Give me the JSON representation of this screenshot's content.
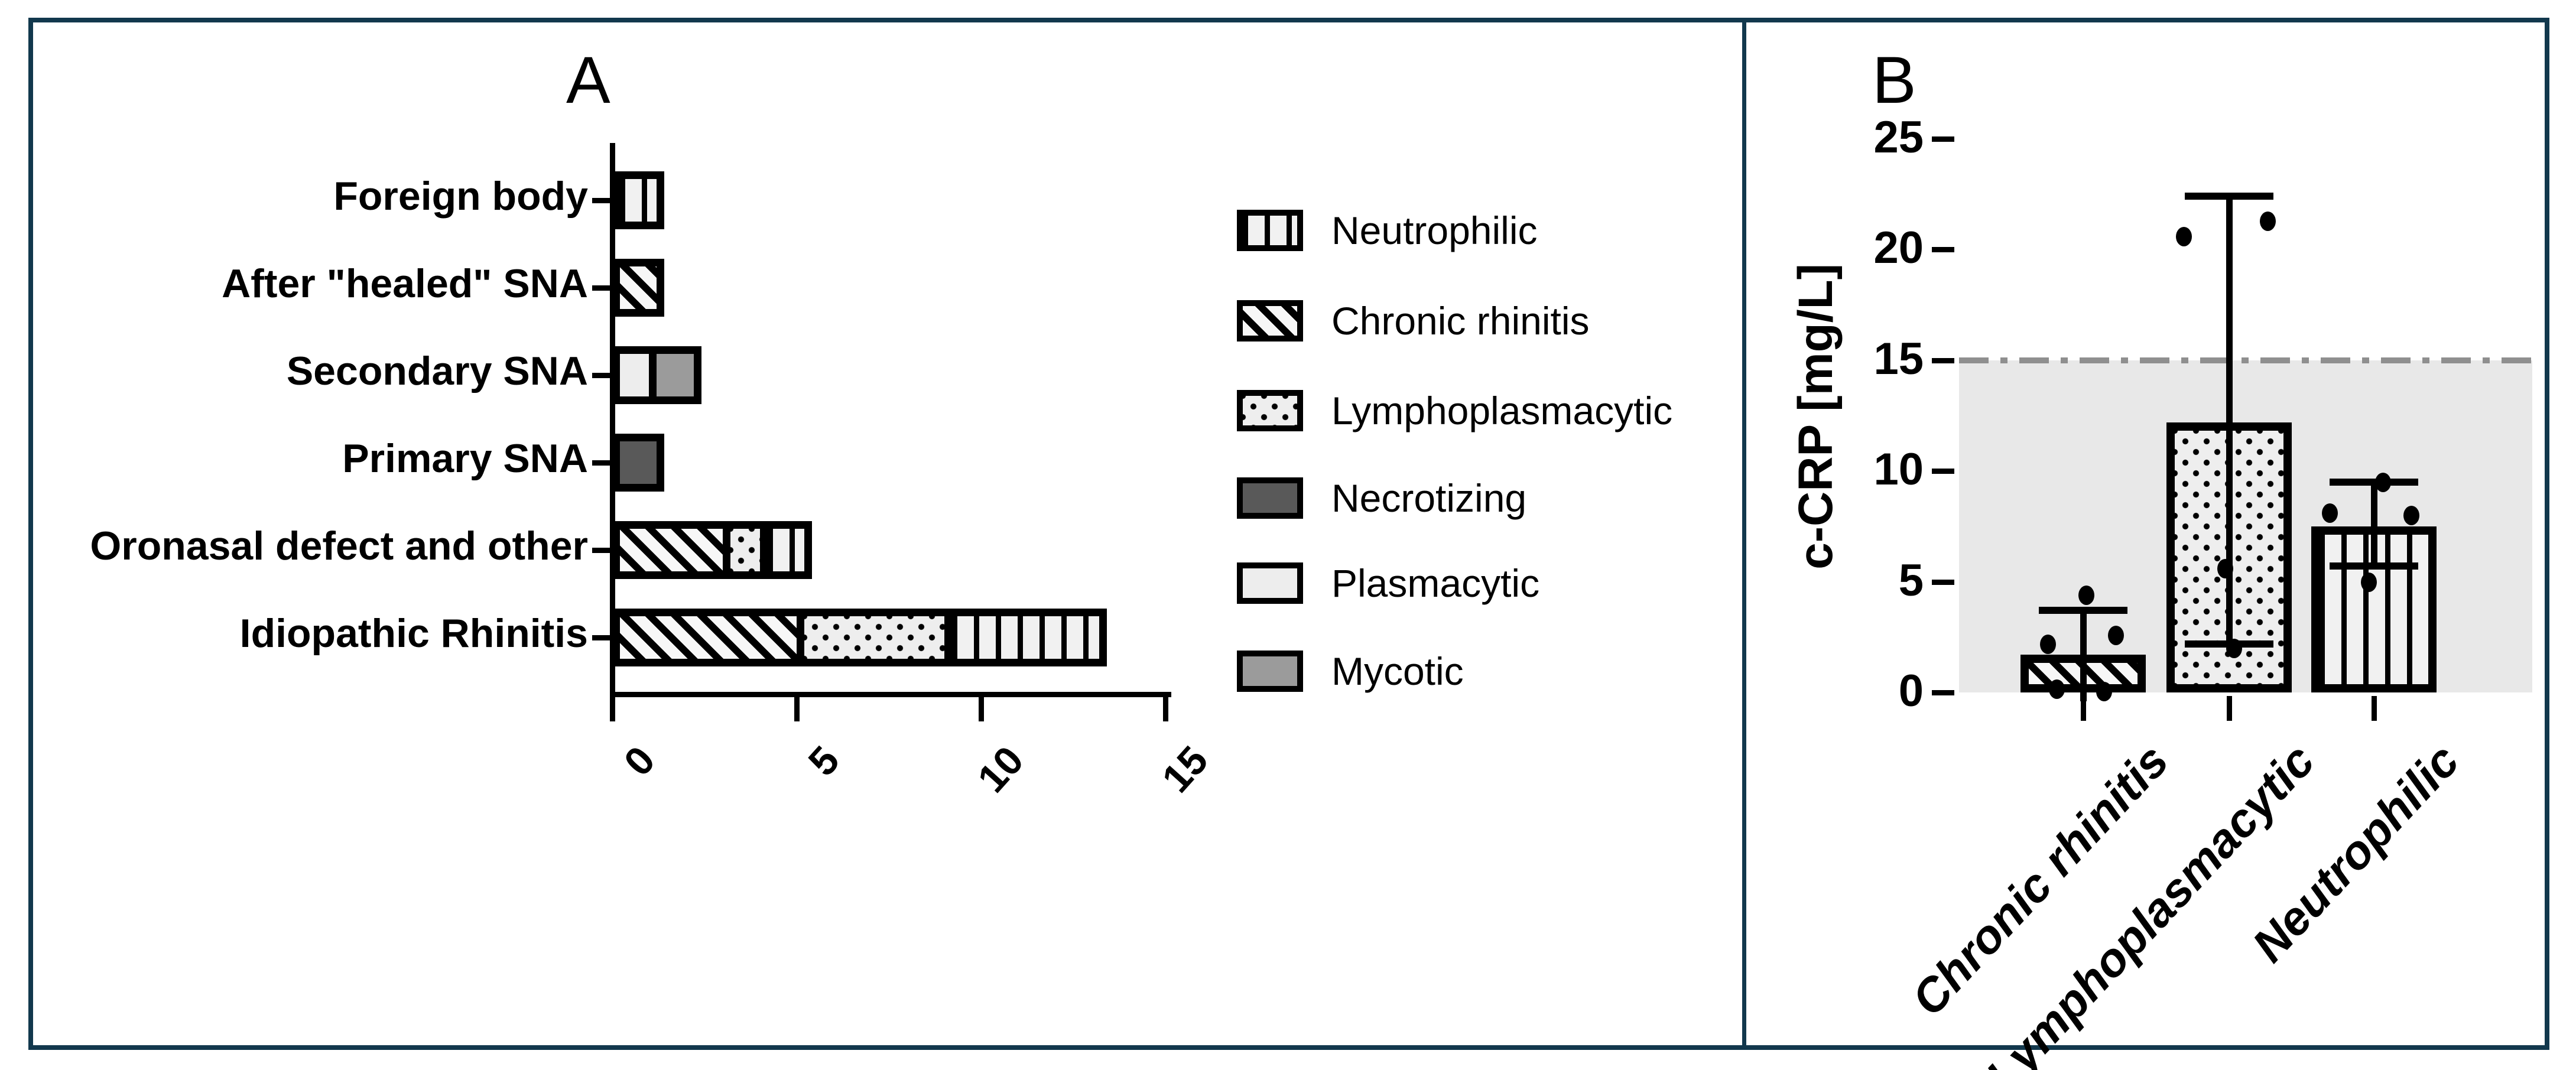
{
  "figure": {
    "panel_a_label": "A",
    "panel_b_label": "B",
    "border_color": "#12384d"
  },
  "chart_data": [
    {
      "type": "bar",
      "panel": "A",
      "orientation": "horizontal",
      "stacked": true,
      "title": "",
      "xlabel": "",
      "ylabel": "",
      "xlim": [
        0,
        15
      ],
      "xticks": [
        0,
        5,
        10,
        15
      ],
      "grid": false,
      "legend_position": "right",
      "categories": [
        "Foreign body",
        "After \"healed\" SNA",
        "Secondary SNA",
        "Primary SNA",
        "Oronasal defect and other",
        "Idiopathic Rhinitis"
      ],
      "bars": [
        {
          "category": "Foreign body",
          "total": 1,
          "segments": [
            {
              "series": "Neutrophilic",
              "value": 1
            }
          ]
        },
        {
          "category": "After \"healed\" SNA",
          "total": 1,
          "segments": [
            {
              "series": "Chronic rhinitis",
              "value": 1
            }
          ]
        },
        {
          "category": "Secondary SNA",
          "total": 2,
          "segments": [
            {
              "series": "Plasmacytic",
              "value": 1
            },
            {
              "series": "Mycotic",
              "value": 1
            }
          ]
        },
        {
          "category": "Primary SNA",
          "total": 1,
          "segments": [
            {
              "series": "Necrotizing",
              "value": 1
            }
          ]
        },
        {
          "category": "Oronasal defect and other",
          "total": 5,
          "segments": [
            {
              "series": "Chronic rhinitis",
              "value": 3
            },
            {
              "series": "Lymphoplasmacytic",
              "value": 1
            },
            {
              "series": "Neutrophilic",
              "value": 1
            }
          ]
        },
        {
          "category": "Idiopathic Rhinitis",
          "total": 13,
          "segments": [
            {
              "series": "Chronic rhinitis",
              "value": 5
            },
            {
              "series": "Lymphoplasmacytic",
              "value": 4
            },
            {
              "series": "Neutrophilic",
              "value": 4
            }
          ]
        }
      ],
      "legend": [
        {
          "label": "Neutrophilic",
          "pattern": "vertical-stripes"
        },
        {
          "label": "Chronic rhinitis",
          "pattern": "diagonal-stripes"
        },
        {
          "label": "Lymphoplasmacytic",
          "pattern": "dots"
        },
        {
          "label": "Necrotizing",
          "pattern": "solid-dark-gray",
          "color": "#595959"
        },
        {
          "label": "Plasmacytic",
          "pattern": "solid-light-gray",
          "color": "#ededed"
        },
        {
          "label": "Mycotic",
          "pattern": "solid-medium-gray",
          "color": "#9b9b9b"
        }
      ]
    },
    {
      "type": "bar",
      "panel": "B",
      "orientation": "vertical",
      "title": "",
      "xlabel": "",
      "ylabel": "c-CRP [mg/L]",
      "ylim": [
        0,
        25
      ],
      "yticks": [
        0,
        5,
        10,
        15,
        20,
        25
      ],
      "grid": false,
      "reference_line": {
        "value": 15,
        "style": "dash-dot",
        "color": "#8f8f8f"
      },
      "shaded_region": {
        "from": 0,
        "to": 15,
        "color": "#e8e8e8"
      },
      "categories": [
        "Chronic rhinitis",
        "Lymphoplasmacytic",
        "Neutrophilic"
      ],
      "bars": [
        {
          "category": "Chronic rhinitis",
          "pattern": "diagonal-stripes",
          "value": 1.7,
          "error_low": -0.4,
          "error_high": 3.7,
          "caps": [
            3.7
          ],
          "points": [
            4.4,
            2.6,
            2.2,
            0.15,
            0.05
          ]
        },
        {
          "category": "Lymphoplasmacytic",
          "pattern": "dots",
          "value": 12.2,
          "error_low": 2.2,
          "error_high": 22.4,
          "caps": [
            22.4,
            2.2
          ],
          "points": [
            21.3,
            20.6,
            5.6,
            2.0
          ]
        },
        {
          "category": "Neutrophilic",
          "pattern": "vertical-stripes",
          "value": 7.5,
          "error_low": 5.7,
          "error_high": 9.5,
          "caps": [
            9.5,
            5.7
          ],
          "points": [
            9.5,
            8.1,
            8.0,
            5.0
          ]
        }
      ]
    }
  ]
}
